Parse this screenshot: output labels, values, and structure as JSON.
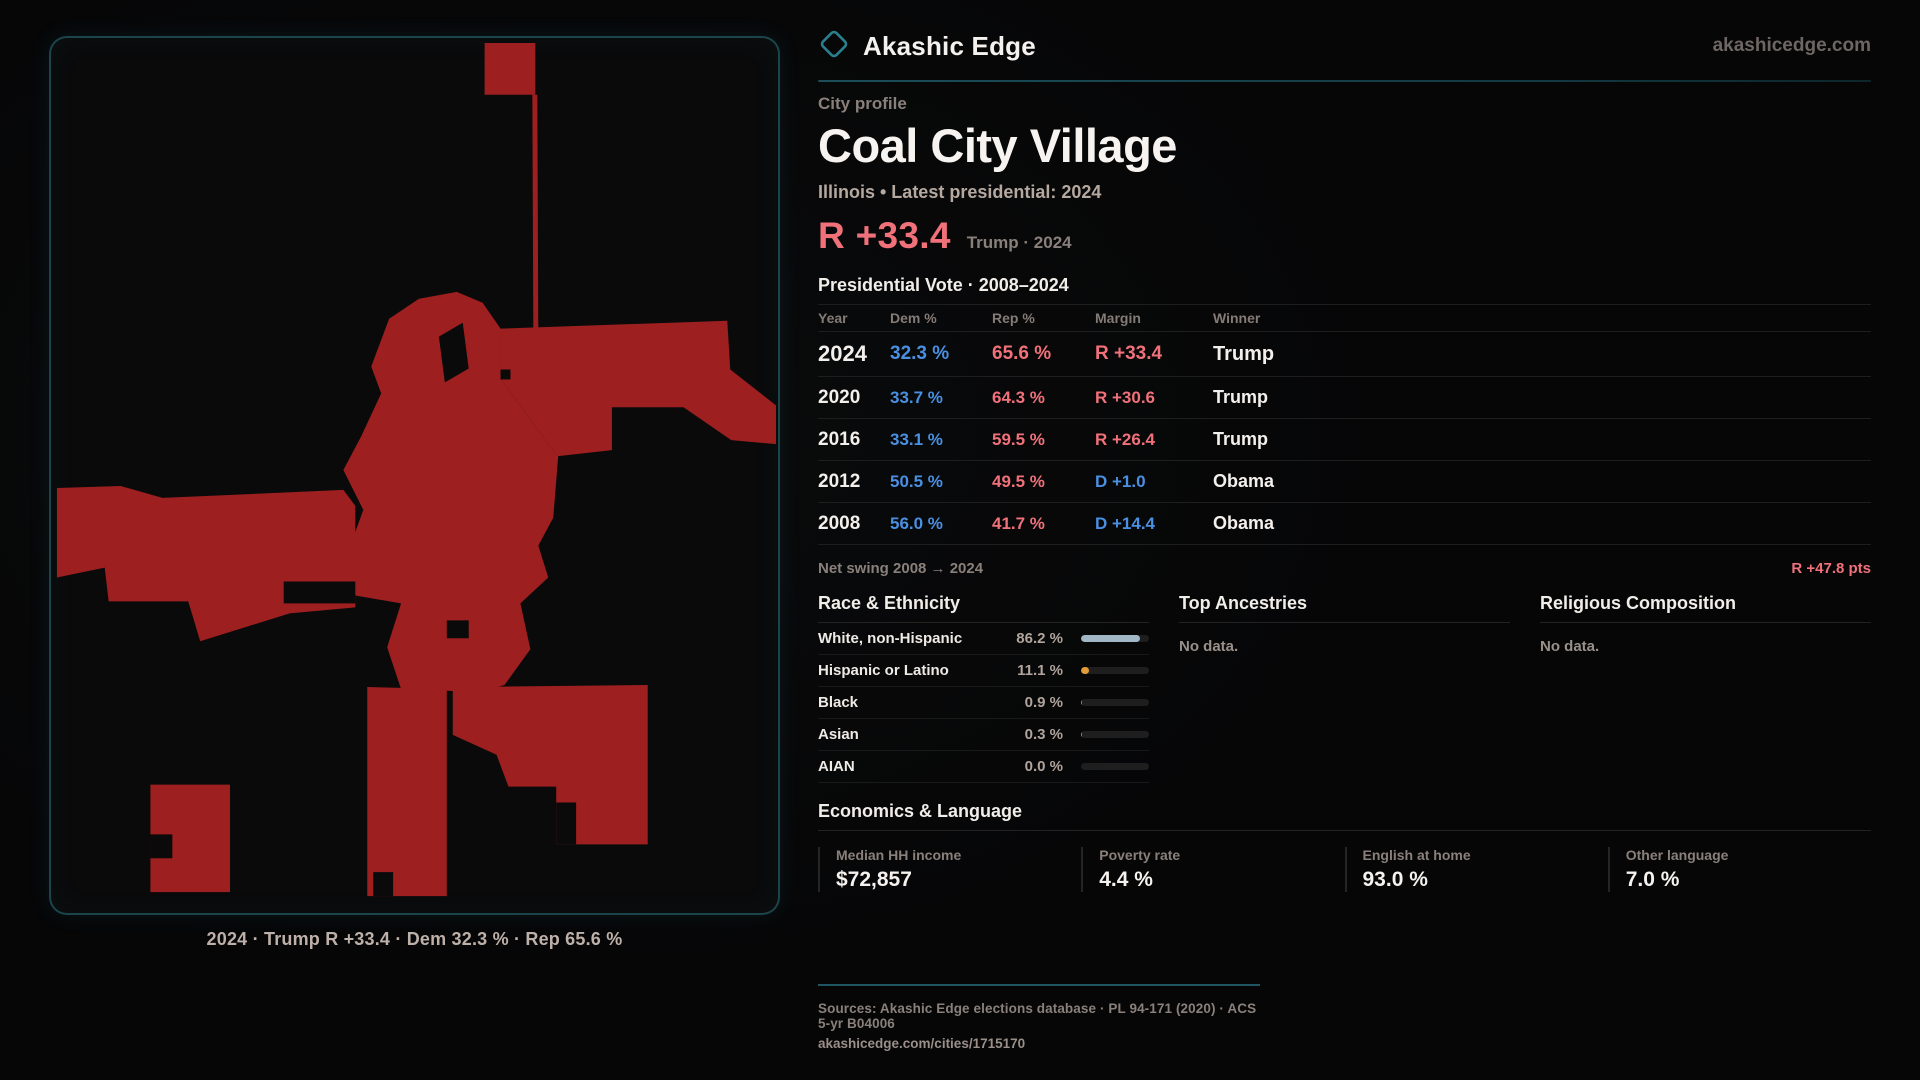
{
  "brand": {
    "name": "Akashic Edge",
    "domain": "akashicedge.com"
  },
  "profile": {
    "kicker": "City profile",
    "title": "Coal City Village",
    "subtitle": "Illinois • Latest presidential: 2024",
    "headline_margin": "R +33.4",
    "headline_note": "Trump · 2024"
  },
  "map": {
    "caption": "2024 · Trump R +33.4 · Dem 32.3 % · Rep 65.6 %"
  },
  "vote_table": {
    "title": "Presidential Vote · 2008–2024",
    "columns": [
      "Year",
      "Dem %",
      "Rep %",
      "Margin",
      "Winner"
    ],
    "rows": [
      {
        "year": "2024",
        "dem": "32.3 %",
        "rep": "65.6 %",
        "margin": "R +33.4",
        "winner": "Trump"
      },
      {
        "year": "2020",
        "dem": "33.7 %",
        "rep": "64.3 %",
        "margin": "R +30.6",
        "winner": "Trump"
      },
      {
        "year": "2016",
        "dem": "33.1 %",
        "rep": "59.5 %",
        "margin": "R +26.4",
        "winner": "Trump"
      },
      {
        "year": "2012",
        "dem": "50.5 %",
        "rep": "49.5 %",
        "margin": "D +1.0",
        "winner": "Obama"
      },
      {
        "year": "2008",
        "dem": "56.0 %",
        "rep": "41.7 %",
        "margin": "D +14.4",
        "winner": "Obama"
      }
    ],
    "net_swing_label": "Net swing 2008 → 2024",
    "net_swing_value": "R +47.8 pts"
  },
  "demographics": {
    "race_title": "Race & Ethnicity",
    "race_rows": [
      {
        "label": "White, non-Hispanic",
        "value": "86.2 %",
        "pct": 86.2,
        "color": "#a2b7c6"
      },
      {
        "label": "Hispanic or Latino",
        "value": "11.1 %",
        "pct": 11.1,
        "color": "#e39c3a"
      },
      {
        "label": "Black",
        "value": "0.9 %",
        "pct": 0.9,
        "color": "#8a8a8a"
      },
      {
        "label": "Asian",
        "value": "0.3 %",
        "pct": 0.3,
        "color": "#8a8a8a"
      },
      {
        "label": "AIAN",
        "value": "0.0 %",
        "pct": 0.0,
        "color": "#8a8a8a"
      }
    ],
    "ancestries_title": "Top Ancestries",
    "ancestries_empty": "No data.",
    "religion_title": "Religious Composition",
    "religion_empty": "No data."
  },
  "economics": {
    "title": "Economics & Language",
    "stats": [
      {
        "label": "Median HH income",
        "value": "$72,857"
      },
      {
        "label": "Poverty rate",
        "value": "4.4 %"
      },
      {
        "label": "English at home",
        "value": "93.0 %"
      },
      {
        "label": "Other language",
        "value": "7.0 %"
      }
    ]
  },
  "footer": {
    "sources": "Sources: Akashic Edge elections database · PL 94-171 (2020) · ACS 5-yr B04006",
    "permalink": "akashicedge.com/cities/1715170"
  },
  "colors": {
    "accent_teal": "#2a7f8e",
    "dem_blue": "#4a90e2",
    "rep_red": "#f0717a",
    "map_red": "#9e1f1f",
    "bar_track": "#1e1e1e"
  }
}
